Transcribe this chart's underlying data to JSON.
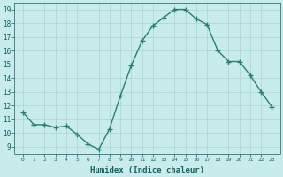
{
  "xlabel": "Humidex (Indice chaleur)",
  "x": [
    0,
    1,
    2,
    3,
    4,
    5,
    6,
    7,
    8,
    9,
    10,
    11,
    12,
    13,
    14,
    15,
    16,
    17,
    18,
    19,
    20,
    21,
    22,
    23
  ],
  "y": [
    11.5,
    10.6,
    10.6,
    10.4,
    10.5,
    9.9,
    9.2,
    8.8,
    10.3,
    12.7,
    14.9,
    16.7,
    17.8,
    18.4,
    19.0,
    19.0,
    18.3,
    17.9,
    16.0,
    15.2,
    15.2,
    14.2,
    13.0,
    11.9
  ],
  "line_color": "#2e7d6e",
  "bg_color": "#c8ecec",
  "grid_color": "#aad4d4",
  "text_color": "#1a5c5c",
  "ylim": [
    8.5,
    19.5
  ],
  "yticks": [
    9,
    10,
    11,
    12,
    13,
    14,
    15,
    16,
    17,
    18,
    19
  ],
  "xticks": [
    0,
    1,
    2,
    3,
    4,
    5,
    6,
    7,
    8,
    9,
    10,
    11,
    12,
    13,
    14,
    15,
    16,
    17,
    18,
    19,
    20,
    21,
    22,
    23
  ],
  "marker": "+",
  "marker_size": 4,
  "line_width": 1.0
}
